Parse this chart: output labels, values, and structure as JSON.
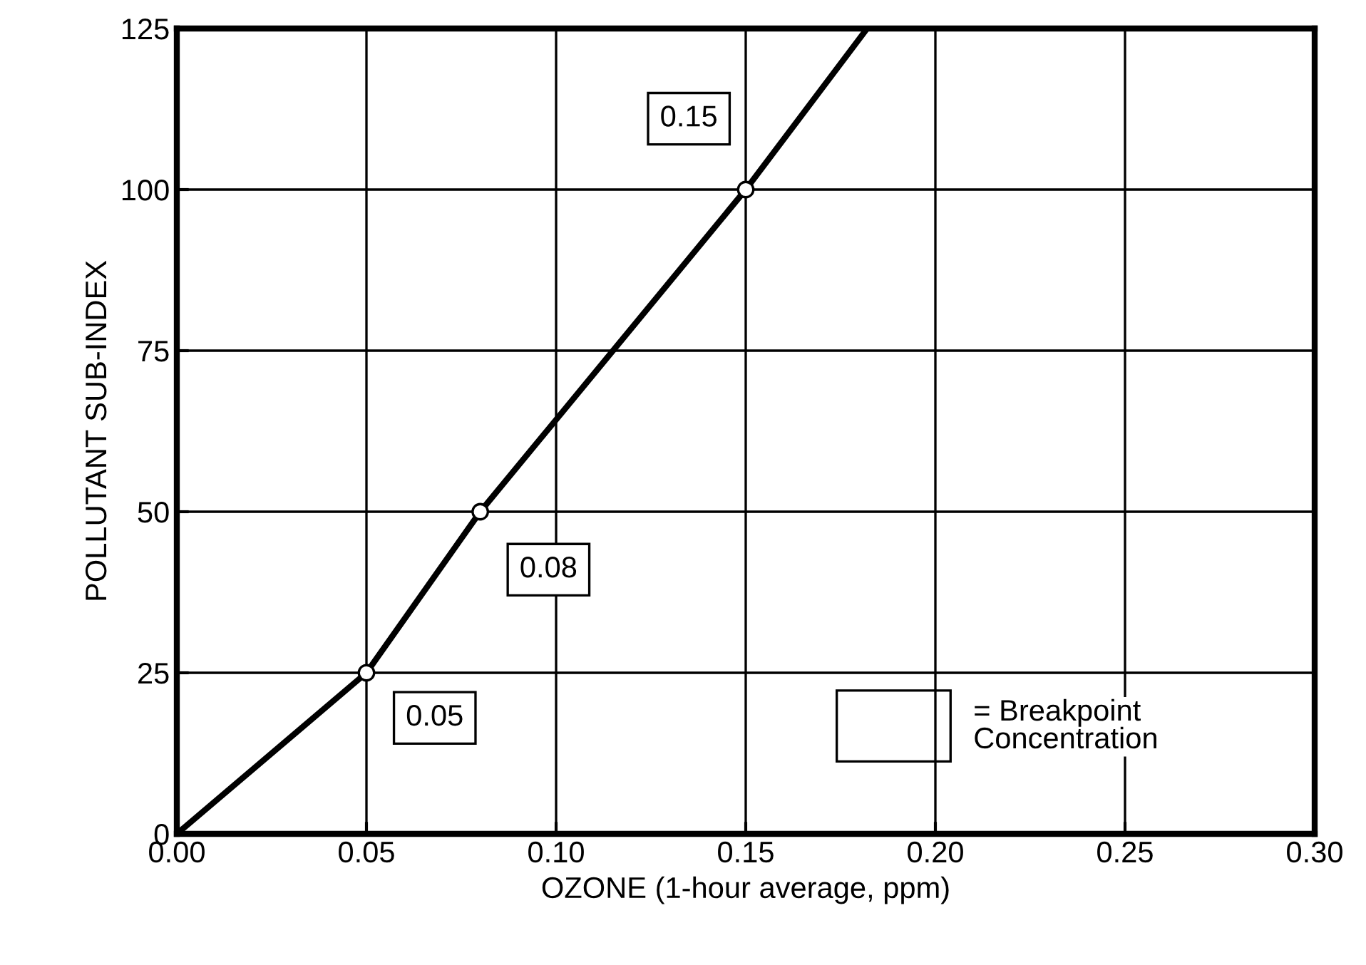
{
  "chart_data": {
    "type": "line",
    "xlabel": "OZONE (1-hour average, ppm)",
    "ylabel": "POLLUTANT SUB-INDEX",
    "series": [
      {
        "color": "#000000",
        "x": [
          0,
          0.05,
          0.08,
          0.15,
          0.182
        ],
        "values": [
          0,
          25,
          50,
          100,
          125
        ],
        "marker": "none"
      },
      {
        "type": "scatter",
        "color": "#ffffff",
        "x": [
          0.05,
          0.08,
          0.15
        ],
        "values": [
          25,
          50,
          100
        ],
        "marker": "circle"
      }
    ],
    "xlim": [
      0,
      0.3
    ],
    "ylim": [
      0,
      125
    ],
    "xticks": [
      {
        "value": 0,
        "label": "0.00"
      },
      {
        "value": 0.05,
        "label": "0.05"
      },
      {
        "value": 0.1,
        "label": "0.10"
      },
      {
        "value": 0.15,
        "label": "0.15"
      },
      {
        "value": 0.2,
        "label": "0.20"
      },
      {
        "value": 0.25,
        "label": "0.25"
      },
      {
        "value": 0.3,
        "label": "0.30"
      }
    ],
    "yticks": [
      0,
      25,
      50,
      75,
      100,
      125
    ],
    "grid": true,
    "annotations": [
      {
        "text": "0.05",
        "x": 0.05,
        "y": 25
      },
      {
        "text": "0.08",
        "x": 0.08,
        "y": 50
      },
      {
        "text": "0.15",
        "x": 0.15,
        "y": 100
      },
      "= Breakpoint Concentration"
    ]
  }
}
